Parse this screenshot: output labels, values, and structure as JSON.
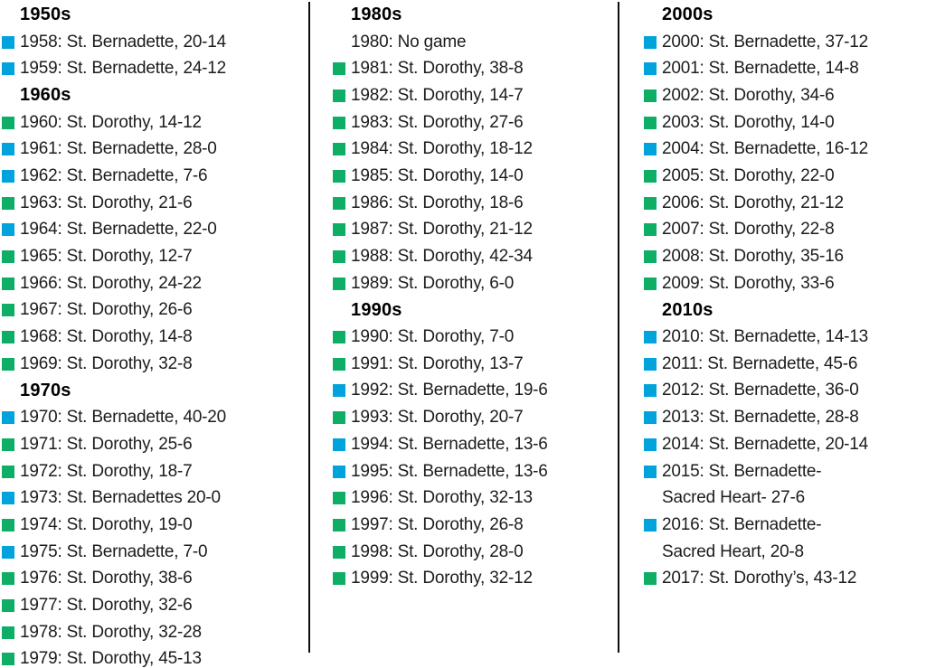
{
  "chart_data": {
    "type": "table",
    "title": "",
    "legend": {
      "bernadette_color": "#00a3dc",
      "dorothy_color": "#0fae66"
    },
    "columns": [
      {
        "sections": [
          {
            "header": "1950s",
            "entries": [
              {
                "winner": "bernadette",
                "text": "1958: St. Bernadette, 20-14"
              },
              {
                "winner": "bernadette",
                "text": "1959: St. Bernadette, 24-12"
              }
            ]
          },
          {
            "header": "1960s",
            "entries": [
              {
                "winner": "dorothy",
                "text": "1960: St. Dorothy, 14-12"
              },
              {
                "winner": "bernadette",
                "text": "1961: St. Bernadette, 28-0"
              },
              {
                "winner": "bernadette",
                "text": "1962: St. Bernadette, 7-6"
              },
              {
                "winner": "dorothy",
                "text": "1963: St. Dorothy, 21-6"
              },
              {
                "winner": "bernadette",
                "text": "1964: St. Bernadette, 22-0"
              },
              {
                "winner": "dorothy",
                "text": "1965: St. Dorothy, 12-7"
              },
              {
                "winner": "dorothy",
                "text": "1966: St. Dorothy, 24-22"
              },
              {
                "winner": "dorothy",
                "text": "1967: St. Dorothy, 26-6"
              },
              {
                "winner": "dorothy",
                "text": "1968: St. Dorothy, 14-8"
              },
              {
                "winner": "dorothy",
                "text": "1969: St. Dorothy, 32-8"
              }
            ]
          },
          {
            "header": "1970s",
            "entries": [
              {
                "winner": "bernadette",
                "text": "1970: St. Bernadette, 40-20"
              },
              {
                "winner": "dorothy",
                "text": "1971: St. Dorothy, 25-6"
              },
              {
                "winner": "dorothy",
                "text": "1972: St. Dorothy, 18-7"
              },
              {
                "winner": "bernadette",
                "text": "1973: St. Bernadettes 20-0"
              },
              {
                "winner": "dorothy",
                "text": "1974: St. Dorothy, 19-0"
              },
              {
                "winner": "bernadette",
                "text": "1975: St. Bernadette, 7-0"
              },
              {
                "winner": "dorothy",
                "text": "1976: St. Dorothy, 38-6"
              },
              {
                "winner": "dorothy",
                "text": "1977: St. Dorothy, 32-6"
              },
              {
                "winner": "dorothy",
                "text": "1978: St. Dorothy, 32-28"
              },
              {
                "winner": "dorothy",
                "text": "1979: St. Dorothy, 45-13"
              }
            ]
          }
        ]
      },
      {
        "sections": [
          {
            "header": "1980s",
            "entries": [
              {
                "winner": "none",
                "text": "1980: No game"
              },
              {
                "winner": "dorothy",
                "text": "1981: St. Dorothy, 38-8"
              },
              {
                "winner": "dorothy",
                "text": "1982: St. Dorothy, 14-7"
              },
              {
                "winner": "dorothy",
                "text": "1983: St. Dorothy, 27-6"
              },
              {
                "winner": "dorothy",
                "text": "1984: St. Dorothy, 18-12"
              },
              {
                "winner": "dorothy",
                "text": "1985: St. Dorothy, 14-0"
              },
              {
                "winner": "dorothy",
                "text": "1986: St. Dorothy, 18-6"
              },
              {
                "winner": "dorothy",
                "text": "1987: St. Dorothy, 21-12"
              },
              {
                "winner": "dorothy",
                "text": "1988: St. Dorothy, 42-34"
              },
              {
                "winner": "dorothy",
                "text": "1989: St. Dorothy, 6-0"
              }
            ]
          },
          {
            "header": "1990s",
            "entries": [
              {
                "winner": "dorothy",
                "text": "1990: St. Dorothy, 7-0"
              },
              {
                "winner": "dorothy",
                "text": "1991: St. Dorothy, 13-7"
              },
              {
                "winner": "bernadette",
                "text": "1992: St. Bernadette, 19-6"
              },
              {
                "winner": "dorothy",
                "text": "1993: St. Dorothy, 20-7"
              },
              {
                "winner": "bernadette",
                "text": "1994: St. Bernadette, 13-6"
              },
              {
                "winner": "bernadette",
                "text": "1995: St. Bernadette, 13-6"
              },
              {
                "winner": "dorothy",
                "text": "1996: St. Dorothy, 32-13"
              },
              {
                "winner": "dorothy",
                "text": "1997: St. Dorothy, 26-8"
              },
              {
                "winner": "dorothy",
                "text": "1998: St. Dorothy, 28-0"
              },
              {
                "winner": "dorothy",
                "text": "1999: St. Dorothy, 32-12"
              }
            ]
          }
        ]
      },
      {
        "sections": [
          {
            "header": "2000s",
            "entries": [
              {
                "winner": "bernadette",
                "text": "2000: St. Bernadette, 37-12"
              },
              {
                "winner": "bernadette",
                "text": "2001: St. Bernadette, 14-8"
              },
              {
                "winner": "dorothy",
                "text": "2002: St. Dorothy, 34-6"
              },
              {
                "winner": "dorothy",
                "text": "2003: St. Dorothy, 14-0"
              },
              {
                "winner": "bernadette",
                "text": "2004: St. Bernadette, 16-12"
              },
              {
                "winner": "dorothy",
                "text": "2005: St. Dorothy, 22-0"
              },
              {
                "winner": "dorothy",
                "text": "2006: St. Dorothy, 21-12"
              },
              {
                "winner": "dorothy",
                "text": "2007: St. Dorothy, 22-8"
              },
              {
                "winner": "dorothy",
                "text": "2008: St. Dorothy, 35-16"
              },
              {
                "winner": "dorothy",
                "text": "2009: St. Dorothy, 33-6"
              }
            ]
          },
          {
            "header": "2010s",
            "entries": [
              {
                "winner": "bernadette",
                "text": "2010: St. Bernadette, 14-13"
              },
              {
                "winner": "bernadette",
                "text": "2011: St. Bernadette, 45-6"
              },
              {
                "winner": "bernadette",
                "text": "2012: St. Bernadette, 36-0"
              },
              {
                "winner": "bernadette",
                "text": "2013: St. Bernadette, 28-8"
              },
              {
                "winner": "bernadette",
                "text": "2014: St. Bernadette, 20-14"
              },
              {
                "winner": "bernadette",
                "text": "2015: St. Bernadette-",
                "line2": "Sacred Heart- 27-6"
              },
              {
                "winner": "bernadette",
                "text": "2016: St. Bernadette-",
                "line2": "Sacred Heart, 20-8"
              },
              {
                "winner": "dorothy",
                "text": "2017: St. Dorothy’s, 43-12"
              }
            ]
          }
        ]
      }
    ]
  }
}
